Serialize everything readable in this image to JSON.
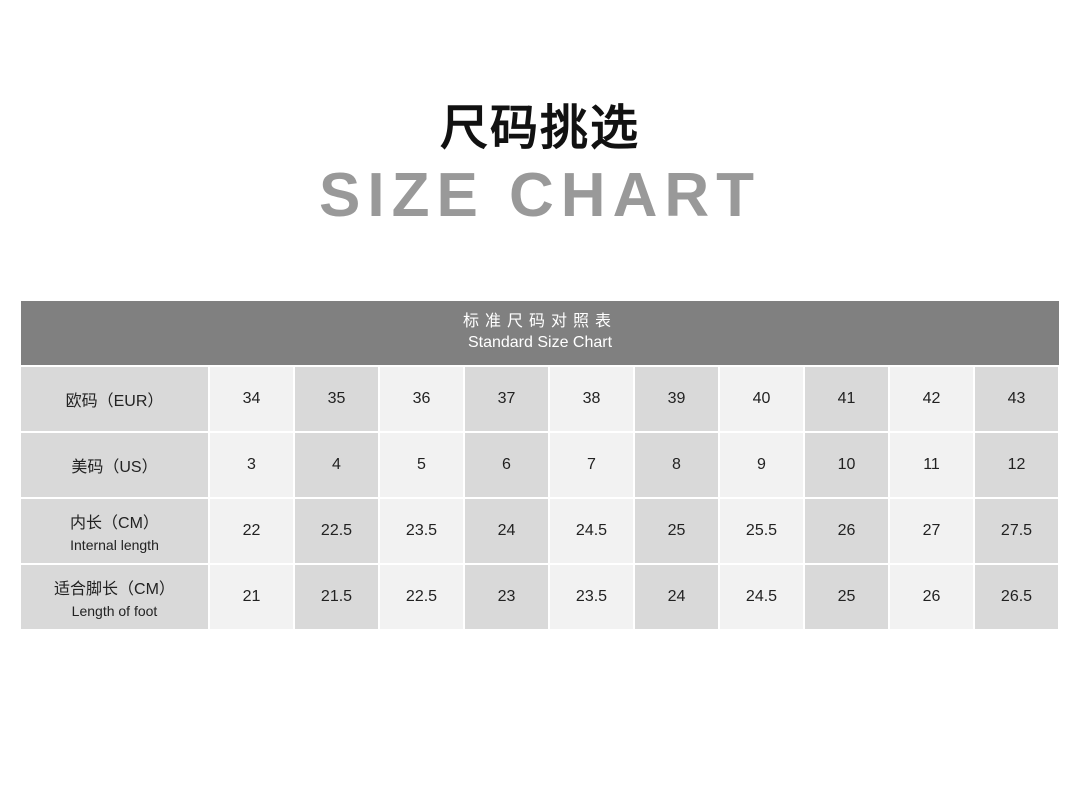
{
  "title_cn": "尺码挑选",
  "title_en": "SIZE CHART",
  "table": {
    "header_cn": "标准尺码对照表",
    "header_en": "Standard Size Chart",
    "rows": [
      {
        "label": "欧码（EUR）",
        "sub": "",
        "values": [
          "34",
          "35",
          "36",
          "37",
          "38",
          "39",
          "40",
          "41",
          "42",
          "43"
        ]
      },
      {
        "label": "美码（US）",
        "sub": "",
        "values": [
          "3",
          "4",
          "5",
          "6",
          "7",
          "8",
          "9",
          "10",
          "11",
          "12"
        ]
      },
      {
        "label": "内长（CM）",
        "sub": "Internal length",
        "values": [
          "22",
          "22.5",
          "23.5",
          "24",
          "24.5",
          "25",
          "25.5",
          "26",
          "27",
          "27.5"
        ]
      },
      {
        "label": "适合脚长（CM）",
        "sub": "Length of foot",
        "values": [
          "21",
          "21.5",
          "22.5",
          "23",
          "23.5",
          "24",
          "24.5",
          "25",
          "26",
          "26.5"
        ]
      }
    ]
  },
  "colors": {
    "header_bg": "#808080",
    "cell_light": "#f2f2f2",
    "cell_dark": "#d9d9d9",
    "subtitle": "#999999"
  }
}
